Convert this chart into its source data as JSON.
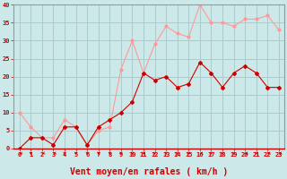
{
  "x": [
    0,
    1,
    2,
    3,
    4,
    5,
    6,
    7,
    8,
    9,
    10,
    11,
    12,
    13,
    14,
    15,
    16,
    17,
    18,
    19,
    20,
    21,
    22,
    23
  ],
  "wind_avg": [
    0,
    3,
    3,
    1,
    6,
    6,
    1,
    6,
    8,
    10,
    13,
    21,
    19,
    20,
    17,
    18,
    24,
    21,
    17,
    21,
    23,
    21,
    17,
    17
  ],
  "wind_gust": [
    10,
    6,
    3,
    3,
    8,
    6,
    1,
    5,
    6,
    22,
    30,
    21,
    29,
    34,
    32,
    31,
    40,
    35,
    35,
    34,
    36,
    36,
    37,
    33
  ],
  "bg_color": "#cce8e8",
  "grid_color": "#aacccc",
  "line_avg_color": "#cc0000",
  "line_gust_color": "#ff9999",
  "xlabel": "Vent moyen/en rafales ( km/h )",
  "ylim": [
    0,
    40
  ],
  "xlim_min": -0.5,
  "xlim_max": 23.5,
  "yticks": [
    0,
    5,
    10,
    15,
    20,
    25,
    30,
    35,
    40
  ],
  "xticks": [
    0,
    1,
    2,
    3,
    4,
    5,
    6,
    7,
    8,
    9,
    10,
    11,
    12,
    13,
    14,
    15,
    16,
    17,
    18,
    19,
    20,
    21,
    22,
    23
  ],
  "tick_fontsize": 5,
  "xlabel_fontsize": 7,
  "arrow_angles": [
    225,
    270,
    225,
    225,
    270,
    270,
    270,
    270,
    270,
    270,
    270,
    270,
    270,
    270,
    270,
    270,
    225,
    270,
    270,
    270,
    225,
    270,
    225,
    225
  ]
}
